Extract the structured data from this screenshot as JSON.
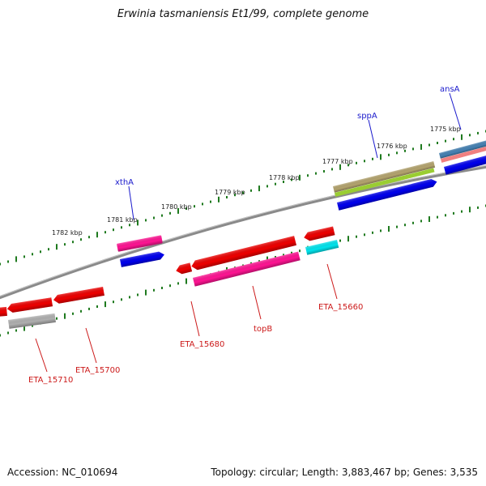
{
  "title": "Erwinia tasmaniensis Et1/99, complete genome",
  "footer": {
    "accession": "Accession: NC_010694",
    "summary": "Topology: circular; Length: 3,883,467 bp; Genes: 3,535"
  },
  "colors": {
    "backbone": "#8a8a8a",
    "ticks": "#1f7a1f",
    "label_forward": "#1a1acc",
    "label_reverse": "#cc1a1a"
  },
  "kbp_labels": [
    "1782 kbp",
    "1781 kbp",
    "1780 kbp",
    "1779 kbp",
    "1778 kbp",
    "1777 kbp",
    "1776 kbp",
    "1775 kbp"
  ],
  "forward_genes": [
    {
      "label": "xthA",
      "color": "#ff1493"
    },
    {
      "label": "",
      "color": "#0000ee"
    },
    {
      "label": "sppA",
      "color": "#b4a46e"
    },
    {
      "label": "",
      "color": "#9acd32"
    },
    {
      "label": "",
      "color": "#0000ee"
    },
    {
      "label": "ansA",
      "color": "#4682b4"
    },
    {
      "label": "",
      "color": "#f08080"
    },
    {
      "label": "",
      "color": "#0000ee"
    }
  ],
  "reverse_genes": [
    {
      "label": "",
      "color": "#ee0000"
    },
    {
      "label": "",
      "color": "#ee0000"
    },
    {
      "label": "",
      "color": "#ee0000"
    },
    {
      "label": "ETA_15710",
      "color": "#b0b0b0"
    },
    {
      "label": "ETA_15700",
      "color": "#ee0000"
    },
    {
      "label": "ETA_15680",
      "color": "#ee0000"
    },
    {
      "label": "",
      "color": "#ee0000"
    },
    {
      "label": "topB",
      "color": "#ff1493"
    },
    {
      "label": "",
      "color": "#ee0000"
    },
    {
      "label": "ETA_15660",
      "color": "#00e5ee"
    }
  ]
}
